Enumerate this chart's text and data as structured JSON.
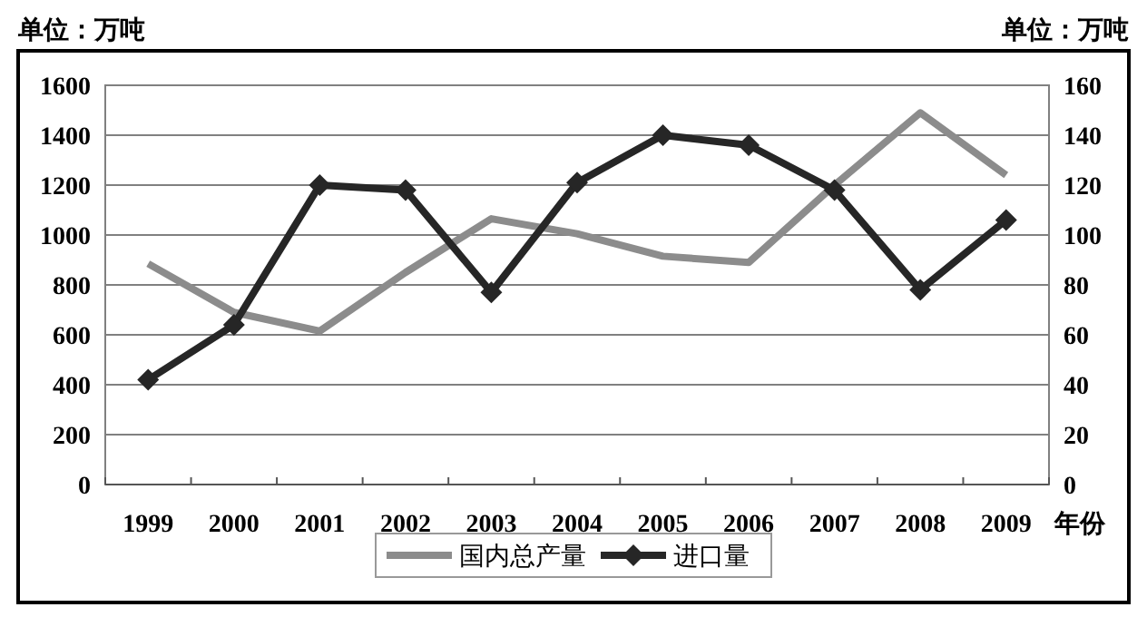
{
  "chart_data": {
    "type": "line",
    "ylabel": "单位：万吨",
    "y2label": "单位：万吨",
    "xlabel": "年份",
    "categories": [
      "1999",
      "2000",
      "2001",
      "2002",
      "2003",
      "2004",
      "2005",
      "2006",
      "2007",
      "2008",
      "2009"
    ],
    "series": [
      {
        "name": "国内总产量",
        "color": "#8c8c8c",
        "marker": "none",
        "values": [
          885,
          690,
          615,
          850,
          1065,
          1005,
          915,
          890,
          1200,
          1490,
          1240
        ]
      },
      {
        "name": "进口量",
        "color": "#262626",
        "marker": "diamond",
        "axis": "y2",
        "values": [
          42,
          64,
          120,
          118,
          77,
          121,
          140,
          136,
          118,
          78,
          106
        ]
      }
    ],
    "ylim": [
      0,
      1600
    ],
    "yticks": [
      0,
      200,
      400,
      600,
      800,
      1000,
      1200,
      1400,
      1600
    ],
    "y2lim": [
      0,
      160
    ],
    "y2ticks": [
      0,
      20,
      40,
      60,
      80,
      100,
      120,
      140,
      160
    ],
    "grid": "y",
    "legend": "bottom",
    "line_style": "solid"
  }
}
